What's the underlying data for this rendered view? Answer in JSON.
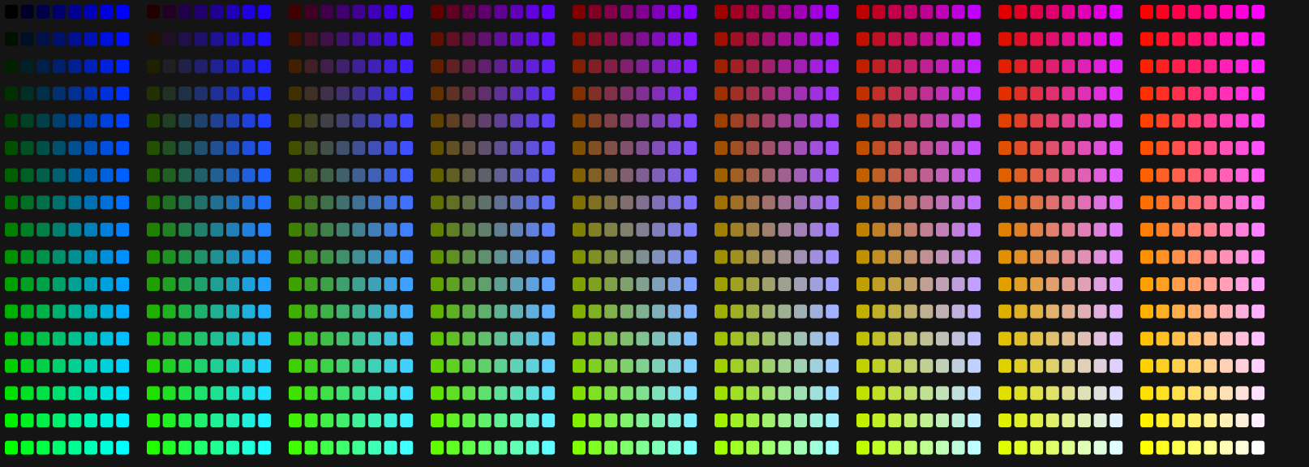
{
  "palette": {
    "red_levels": [
      0,
      32,
      64,
      96,
      128,
      160,
      192,
      224,
      255
    ],
    "green_levels": [
      0,
      16,
      32,
      48,
      64,
      80,
      96,
      112,
      128,
      144,
      160,
      176,
      192,
      208,
      224,
      240,
      255
    ],
    "blue_levels": [
      0,
      36,
      73,
      109,
      146,
      182,
      219,
      255
    ]
  }
}
